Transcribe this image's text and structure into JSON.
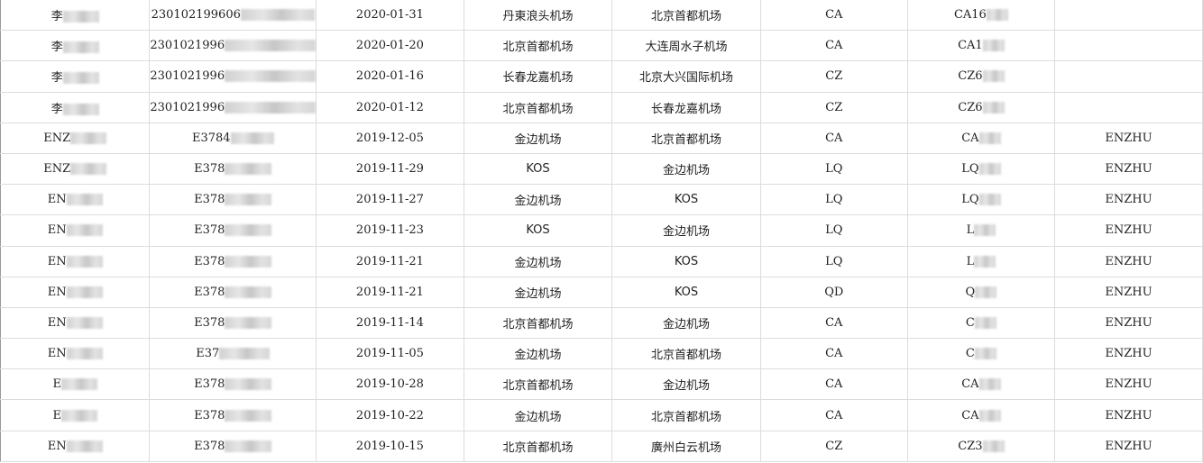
{
  "rows": [
    {
      "name": "李",
      "id": "230102199606",
      "date": "2020-01-31",
      "from": "丹東浪头机场",
      "to": "北京首都机场",
      "airline": "CA",
      "flight": "CA16",
      "passenger": ""
    },
    {
      "name": "李",
      "id": "2301021996",
      "date": "2020-01-20",
      "from": "北京首都机场",
      "to": "大连周水子机场",
      "airline": "CA",
      "flight": "CA1",
      "passenger": ""
    },
    {
      "name": "李",
      "id": "2301021996",
      "date": "2020-01-16",
      "from": "长春龙嘉机场",
      "to": "北京大兴国际机场",
      "airline": "CZ",
      "flight": "CZ6",
      "passenger": ""
    },
    {
      "name": "李",
      "id": "2301021996",
      "date": "2020-01-12",
      "from": "北京首都机场",
      "to": "长春龙嘉机场",
      "airline": "CZ",
      "flight": "CZ6",
      "passenger": ""
    },
    {
      "name": "ENZ",
      "id": "E3784",
      "date": "2019-12-05",
      "from": "金边机场",
      "to": "北京首都机场",
      "airline": "CA",
      "flight": "CA",
      "passenger": "ENZHU"
    },
    {
      "name": "ENZ",
      "id": "E378",
      "date": "2019-11-29",
      "from": "KOS",
      "to": "金边机场",
      "airline": "LQ",
      "flight": "LQ",
      "passenger": "ENZHU"
    },
    {
      "name": "EN",
      "id": "E378",
      "date": "2019-11-27",
      "from": "金边机场",
      "to": "KOS",
      "airline": "LQ",
      "flight": "LQ",
      "passenger": "ENZHU"
    },
    {
      "name": "EN",
      "id": "E378",
      "date": "2019-11-23",
      "from": "KOS",
      "to": "金边机场",
      "airline": "LQ",
      "flight": "L",
      "passenger": "ENZHU"
    },
    {
      "name": "EN",
      "id": "E378",
      "date": "2019-11-21",
      "from": "金边机场",
      "to": "KOS",
      "airline": "LQ",
      "flight": "L",
      "passenger": "ENZHU"
    },
    {
      "name": "EN",
      "id": "E378",
      "date": "2019-11-21",
      "from": "金边机场",
      "to": "KOS",
      "airline": "QD",
      "flight": "Q",
      "passenger": "ENZHU"
    },
    {
      "name": "EN",
      "id": "E378",
      "date": "2019-11-14",
      "from": "北京首都机场",
      "to": "金边机场",
      "airline": "CA",
      "flight": "C",
      "passenger": "ENZHU"
    },
    {
      "name": "EN",
      "id": "E37",
      "date": "2019-11-05",
      "from": "金边机场",
      "to": "北京首都机场",
      "airline": "CA",
      "flight": "C",
      "passenger": "ENZHU"
    },
    {
      "name": "E",
      "id": "E378",
      "date": "2019-10-28",
      "from": "北京首都机场",
      "to": "金边机场",
      "airline": "CA",
      "flight": "CA",
      "passenger": "ENZHU"
    },
    {
      "name": "E",
      "id": "E378",
      "date": "2019-10-22",
      "from": "金边机场",
      "to": "北京首都机场",
      "airline": "CA",
      "flight": "CA",
      "passenger": "ENZHU"
    },
    {
      "name": "EN",
      "id": "E378",
      "date": "2019-10-15",
      "from": "北京首都机场",
      "to": "廣州白云机场",
      "airline": "CZ",
      "flight": "CZ3",
      "passenger": "ENZHU"
    }
  ]
}
